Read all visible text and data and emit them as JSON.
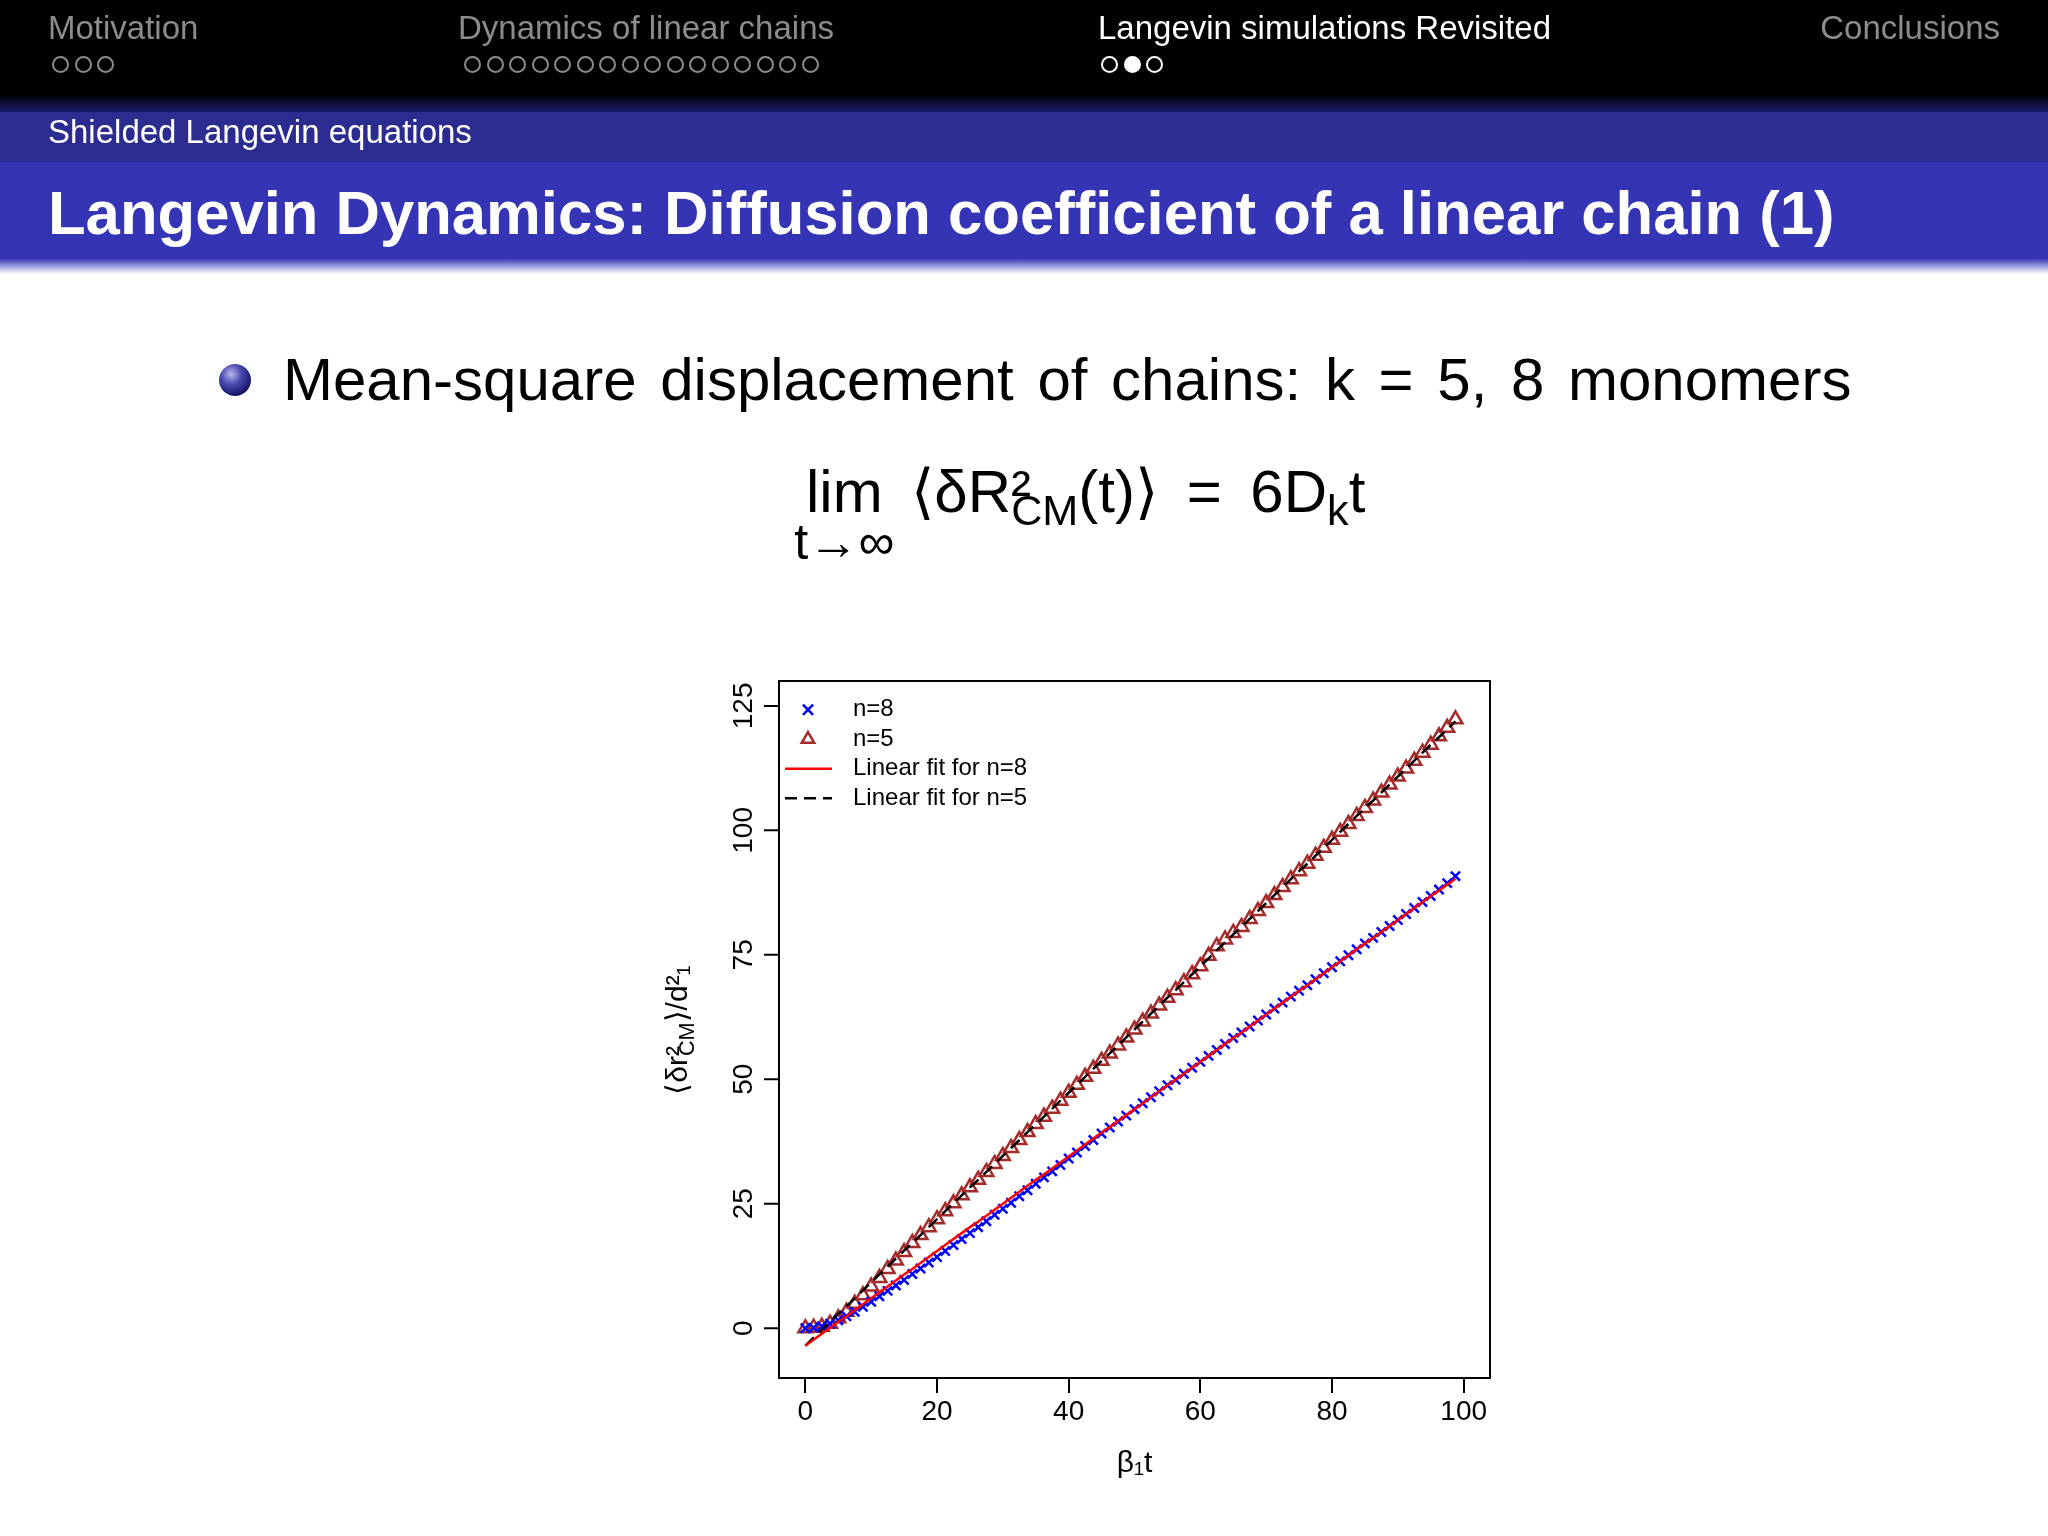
{
  "chart_data": {
    "type": "scatter",
    "title": "Langevin Dynamics: Diffusion coefficient of a linear chain (1)",
    "subtitle": "Shielded Langevin equations",
    "xlabel": "β₁t",
    "ylabel": "⟨δr²$_{CM}$⟩/d²₁",
    "annotations": [
      "Motivation",
      "Dynamics of linear chains",
      "Langevin simulations Revisited",
      "Conclusions",
      "Mean-square displacement of chains: k = 5, 8 monomers",
      "lim$_{t→∞}$ ⟨δR²$_{CM}$(t)⟩ = 6D$_{k}$t"
    ],
    "x": [
      0,
      1.25,
      2.5,
      3.75,
      5,
      6.25,
      7.5,
      8.75,
      10,
      11.25,
      12.5,
      13.75,
      15,
      16.25,
      17.5,
      18.75,
      20,
      21.25,
      22.5,
      23.75,
      25,
      26.25,
      27.5,
      28.75,
      30,
      31.25,
      32.5,
      33.75,
      35,
      36.25,
      37.5,
      38.75,
      40,
      41.25,
      42.5,
      43.75,
      45,
      46.25,
      47.5,
      48.75,
      50,
      51.25,
      52.5,
      53.75,
      55,
      56.25,
      57.5,
      58.75,
      60,
      61.25,
      62.5,
      63.75,
      65,
      66.25,
      67.5,
      68.75,
      70,
      71.25,
      72.5,
      73.75,
      75,
      76.25,
      77.5,
      78.75,
      80,
      81.25,
      82.5,
      83.75,
      85,
      86.25,
      87.5,
      88.75,
      90,
      91.25,
      92.5,
      93.75,
      95,
      96.25,
      97.5,
      98.75
    ],
    "series": [
      {
        "name": "n=8",
        "color": "#0000ff",
        "marker": "cross",
        "values": [
          0.0,
          0.1,
          0.4,
          0.9,
          1.6,
          2.4,
          3.3,
          4.3,
          5.3,
          6.4,
          7.5,
          8.6,
          9.7,
          10.9,
          12.0,
          13.2,
          14.3,
          15.5,
          16.7,
          17.9,
          19.1,
          20.3,
          21.5,
          22.8,
          24.0,
          25.2,
          26.5,
          27.7,
          29.0,
          30.3,
          31.5,
          32.8,
          34.1,
          35.3,
          36.6,
          37.8,
          39.1,
          40.3,
          41.5,
          42.7,
          44.0,
          45.2,
          46.4,
          47.6,
          48.8,
          49.9,
          51.1,
          52.3,
          53.5,
          54.7,
          55.9,
          57.1,
          58.3,
          59.4,
          60.6,
          61.8,
          63.0,
          64.2,
          65.4,
          66.6,
          67.8,
          68.9,
          70.1,
          71.3,
          72.5,
          73.7,
          74.9,
          76.1,
          77.3,
          78.4,
          79.6,
          80.8,
          82.0,
          83.2,
          84.4,
          85.6,
          86.8,
          88.1,
          89.4,
          90.8
        ]
      },
      {
        "name": "n=5",
        "color": "#a52a2a",
        "marker": "triangle",
        "values": [
          0.0,
          0.1,
          0.3,
          0.9,
          2.0,
          3.3,
          4.9,
          6.6,
          8.4,
          10.1,
          11.9,
          13.6,
          15.3,
          17.1,
          18.7,
          20.3,
          21.9,
          23.5,
          25.1,
          26.7,
          28.3,
          29.8,
          31.4,
          33.0,
          34.6,
          36.2,
          37.8,
          39.4,
          41.0,
          42.5,
          44.1,
          45.7,
          47.3,
          48.9,
          50.5,
          52.1,
          53.7,
          55.2,
          56.8,
          58.4,
          60.0,
          61.6,
          63.2,
          64.8,
          66.4,
          67.9,
          69.5,
          71.1,
          72.7,
          74.8,
          76.7,
          78.1,
          79.4,
          80.6,
          82.2,
          83.8,
          85.4,
          87.0,
          88.6,
          90.2,
          91.8,
          93.3,
          94.9,
          96.5,
          98.1,
          99.7,
          101.3,
          102.9,
          104.5,
          106.0,
          107.6,
          109.2,
          110.8,
          112.4,
          114.0,
          115.6,
          117.2,
          118.9,
          120.6,
          122.3
        ]
      },
      {
        "name": "Linear fit for n=8",
        "type": "line",
        "color": "#ff0000",
        "line_style": "solid",
        "marker": "none",
        "values": [
          -3.5,
          -2.3,
          -1.1,
          0.1,
          1.3,
          2.4,
          3.6,
          4.8,
          6.0,
          7.2,
          8.4,
          9.6,
          10.8,
          11.9,
          13.1,
          14.3,
          15.5,
          16.7,
          17.9,
          19.1,
          20.3,
          21.4,
          22.6,
          23.8,
          25.0,
          26.2,
          27.4,
          28.6,
          29.8,
          30.9,
          32.1,
          33.3,
          34.5,
          35.7,
          36.9,
          38.1,
          39.3,
          40.4,
          41.6,
          42.8,
          44.0,
          45.2,
          46.4,
          47.6,
          48.8,
          49.9,
          51.1,
          52.3,
          53.5,
          54.7,
          55.9,
          57.1,
          58.3,
          59.4,
          60.6,
          61.8,
          63.0,
          64.2,
          65.4,
          66.6,
          67.8,
          68.9,
          70.1,
          71.3,
          72.5,
          73.7,
          74.9,
          76.1,
          77.3,
          78.4,
          79.6,
          80.8,
          82.0,
          83.2,
          84.4,
          85.6,
          86.8,
          87.9,
          89.1,
          90.3
        ]
      },
      {
        "name": "Linear fit for n=5",
        "type": "line",
        "color": "#000000",
        "line_style": "dashed",
        "marker": "none",
        "values": [
          -3.5,
          -1.9,
          -0.3,
          1.3,
          2.9,
          4.4,
          6.0,
          7.6,
          9.2,
          10.8,
          12.4,
          14.0,
          15.6,
          17.1,
          18.7,
          20.3,
          21.9,
          23.5,
          25.1,
          26.7,
          28.3,
          29.8,
          31.4,
          33.0,
          34.6,
          36.2,
          37.8,
          39.4,
          41.0,
          42.5,
          44.1,
          45.7,
          47.3,
          48.9,
          50.5,
          52.1,
          53.7,
          55.2,
          56.8,
          58.4,
          60.0,
          61.6,
          63.2,
          64.8,
          66.4,
          67.9,
          69.5,
          71.1,
          72.7,
          74.3,
          75.9,
          77.5,
          79.1,
          80.6,
          82.2,
          83.8,
          85.4,
          87.0,
          88.6,
          90.2,
          91.8,
          93.3,
          94.9,
          96.5,
          98.1,
          99.7,
          101.3,
          102.9,
          104.5,
          106.0,
          107.6,
          109.2,
          110.8,
          112.4,
          114.0,
          115.6,
          117.2,
          118.7,
          120.3,
          121.9
        ]
      }
    ],
    "xlim": [
      -4,
      104
    ],
    "ylim": [
      -10,
      130
    ],
    "xticks": [
      0,
      20,
      40,
      60,
      80,
      100
    ],
    "yticks": [
      0,
      25,
      50,
      75,
      100,
      125
    ],
    "legend": "top left"
  }
}
